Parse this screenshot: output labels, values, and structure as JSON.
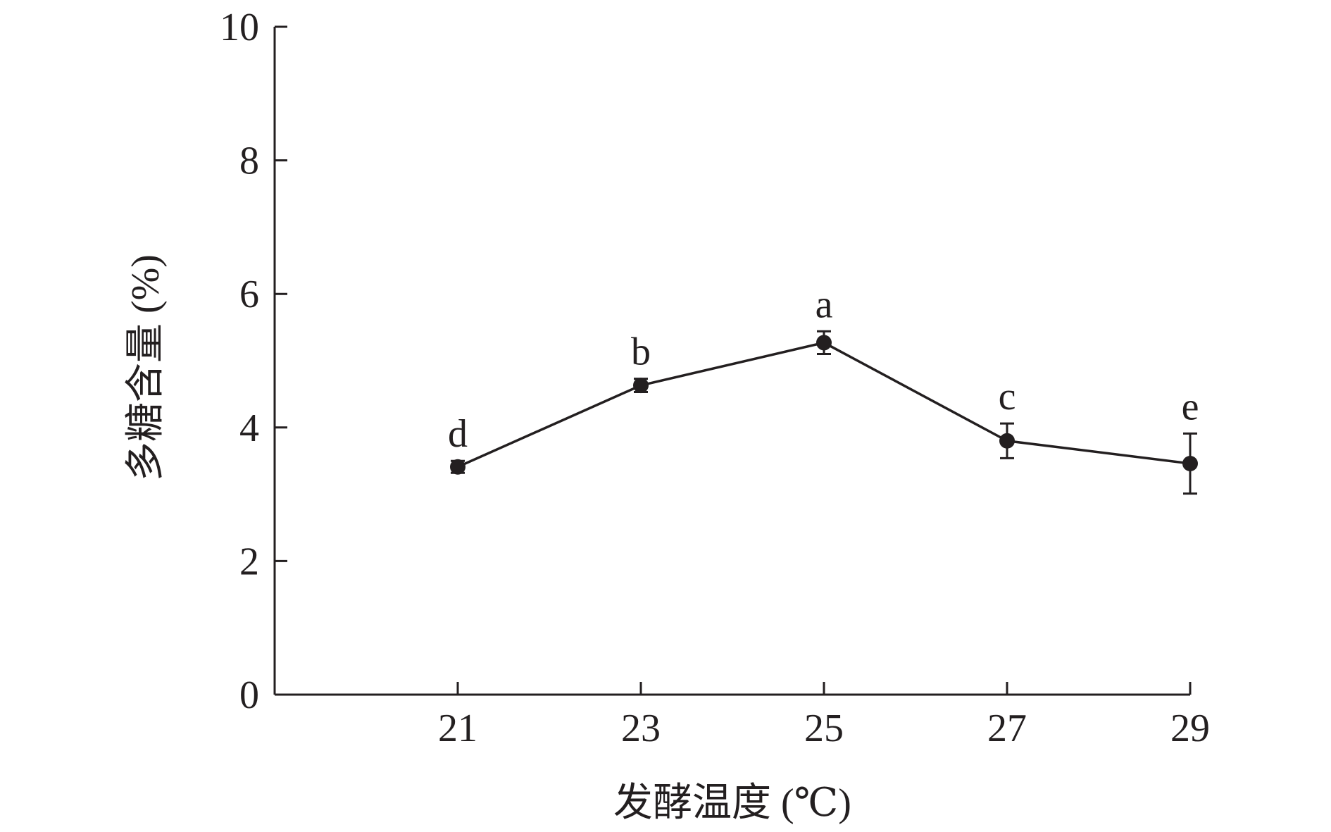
{
  "chart_data": {
    "type": "line",
    "title": "",
    "xlabel": "发酵温度 (℃)",
    "ylabel": "多糖含量 (%)",
    "x": [
      21,
      23,
      25,
      27,
      29
    ],
    "xticks": [
      "21",
      "23",
      "25",
      "27",
      "29"
    ],
    "xlim": [
      19,
      29
    ],
    "ylim": [
      0,
      10
    ],
    "yticks": [
      "0",
      "2",
      "4",
      "6",
      "8",
      "10"
    ],
    "grid": false,
    "series": [
      {
        "values": [
          3.41,
          4.63,
          5.27,
          3.8,
          3.46
        ],
        "errors": [
          0.09,
          0.1,
          0.17,
          0.26,
          0.45
        ],
        "labels": [
          "d",
          "b",
          "a",
          "c",
          "e"
        ],
        "color": "#231f20"
      }
    ]
  }
}
